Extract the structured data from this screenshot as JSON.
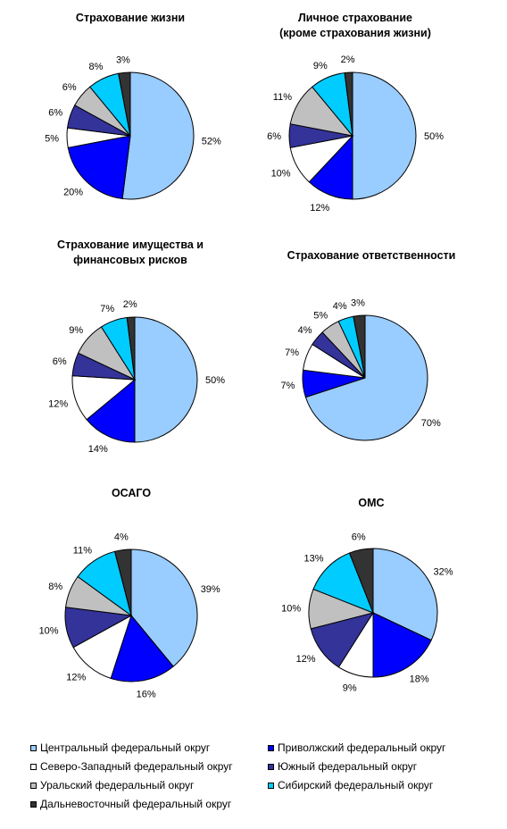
{
  "legend": [
    {
      "name": "Центральный федеральный округ",
      "color": "#99CCFF"
    },
    {
      "name": "Приволжский федеральный округ",
      "color": "#0000FF"
    },
    {
      "name": "Северо-Западный федеральный округ",
      "color": "#FFFFFF"
    },
    {
      "name": "Южный федеральный округ",
      "color": "#333399"
    },
    {
      "name": "Уральский федеральный округ",
      "color": "#C0C0C0"
    },
    {
      "name": "Сибирский федеральный округ",
      "color": "#00CCFF"
    },
    {
      "name": "Дальневосточный федеральный округ",
      "color": "#333333"
    }
  ],
  "chart_data": [
    {
      "type": "pie",
      "title": "Страхование жизни",
      "categories": [
        "Центральный федеральный округ",
        "Приволжский федеральный округ",
        "Северо-Западный федеральный округ",
        "Южный федеральный округ",
        "Уральский федеральный округ",
        "Сибирский федеральный округ",
        "Дальневосточный федеральный округ"
      ],
      "values": [
        52,
        20,
        5,
        6,
        6,
        8,
        3
      ],
      "labels": [
        "52%",
        "20%",
        "5%",
        "6%",
        "6%",
        "8%",
        "3%"
      ]
    },
    {
      "type": "pie",
      "title": "Личное страхование\n(кроме страхования жизни)",
      "categories": [
        "Центральный федеральный округ",
        "Приволжский федеральный округ",
        "Северо-Западный федеральный округ",
        "Южный федеральный округ",
        "Уральский федеральный округ",
        "Сибирский федеральный округ",
        "Дальневосточный федеральный округ"
      ],
      "values": [
        50,
        12,
        10,
        6,
        11,
        9,
        2
      ],
      "labels": [
        "50%",
        "12%",
        "10%",
        "6%",
        "11%",
        "9%",
        "2%"
      ]
    },
    {
      "type": "pie",
      "title": "Страхование имущества и\nфинансовых рисков",
      "categories": [
        "Центральный федеральный округ",
        "Приволжский федеральный округ",
        "Северо-Западный федеральный округ",
        "Южный федеральный округ",
        "Уральский федеральный округ",
        "Сибирский федеральный округ",
        "Дальневосточный федеральный округ"
      ],
      "values": [
        50,
        14,
        12,
        6,
        9,
        7,
        2
      ],
      "labels": [
        "50%",
        "14%",
        "12%",
        "6%",
        "9%",
        "7%",
        "2%"
      ]
    },
    {
      "type": "pie",
      "title": "Страхование ответственности",
      "categories": [
        "Центральный федеральный округ",
        "Приволжский федеральный округ",
        "Северо-Западный федеральный округ",
        "Южный федеральный округ",
        "Уральский федеральный округ",
        "Сибирский федеральный округ",
        "Дальневосточный федеральный округ"
      ],
      "values": [
        70,
        7,
        7,
        4,
        5,
        4,
        3
      ],
      "labels": [
        "70%",
        "7%",
        "7%",
        "4%",
        "5%",
        "4%",
        "3%"
      ]
    },
    {
      "type": "pie",
      "title": "ОСАГО",
      "categories": [
        "Центральный федеральный округ",
        "Приволжский федеральный округ",
        "Северо-Западный федеральный округ",
        "Южный федеральный округ",
        "Уральский федеральный округ",
        "Сибирский федеральный округ",
        "Дальневосточный федеральный округ"
      ],
      "values": [
        39,
        16,
        12,
        10,
        8,
        11,
        4
      ],
      "labels": [
        "39%",
        "16%",
        "12%",
        "10%",
        "8%",
        "11%",
        "4%"
      ]
    },
    {
      "type": "pie",
      "title": "ОМС",
      "categories": [
        "Центральный федеральный округ",
        "Приволжский федеральный округ",
        "Северо-Западный федеральный округ",
        "Южный федеральный округ",
        "Уральский федеральный округ",
        "Сибирский федеральный округ",
        "Дальневосточный федеральный округ"
      ],
      "values": [
        32,
        18,
        9,
        12,
        10,
        13,
        6
      ],
      "labels": [
        "32%",
        "18%",
        "9%",
        "12%",
        "10%",
        "13%",
        "6%"
      ]
    }
  ]
}
